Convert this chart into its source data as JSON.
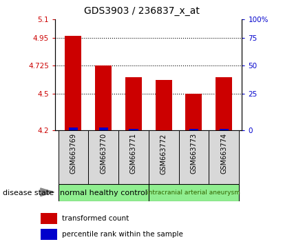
{
  "title": "GDS3903 / 236837_x_at",
  "samples": [
    "GSM663769",
    "GSM663770",
    "GSM663771",
    "GSM663772",
    "GSM663773",
    "GSM663774"
  ],
  "red_values": [
    4.97,
    4.73,
    4.63,
    4.61,
    4.5,
    4.63
  ],
  "blue_values": [
    4.225,
    4.225,
    4.215,
    4.2,
    4.215,
    4.215
  ],
  "bar_bottom": 4.2,
  "ylim": [
    4.2,
    5.1
  ],
  "yticks": [
    4.2,
    4.5,
    4.725,
    4.95,
    5.1
  ],
  "ytick_labels": [
    "4.2",
    "4.5",
    "4.725",
    "4.95",
    "5.1"
  ],
  "right_ytick_labels": [
    "0",
    "25",
    "50",
    "75",
    "100%"
  ],
  "grid_yticks": [
    4.5,
    4.725,
    4.95
  ],
  "left_color": "#cc0000",
  "right_color": "#0000cc",
  "group1_label": "normal healthy control",
  "group2_label": "intracranial arterial aneurysm",
  "group1_color": "#90ee90",
  "group2_color": "#90ee90",
  "group2_label_color": "#336600",
  "disease_state_label": "disease state",
  "legend_red_label": "transformed count",
  "legend_blue_label": "percentile rank within the sample",
  "bar_width": 0.55,
  "tick_label_color_left": "#cc0000",
  "tick_label_color_right": "#0000cc",
  "bg_color": "#d8d8d8"
}
